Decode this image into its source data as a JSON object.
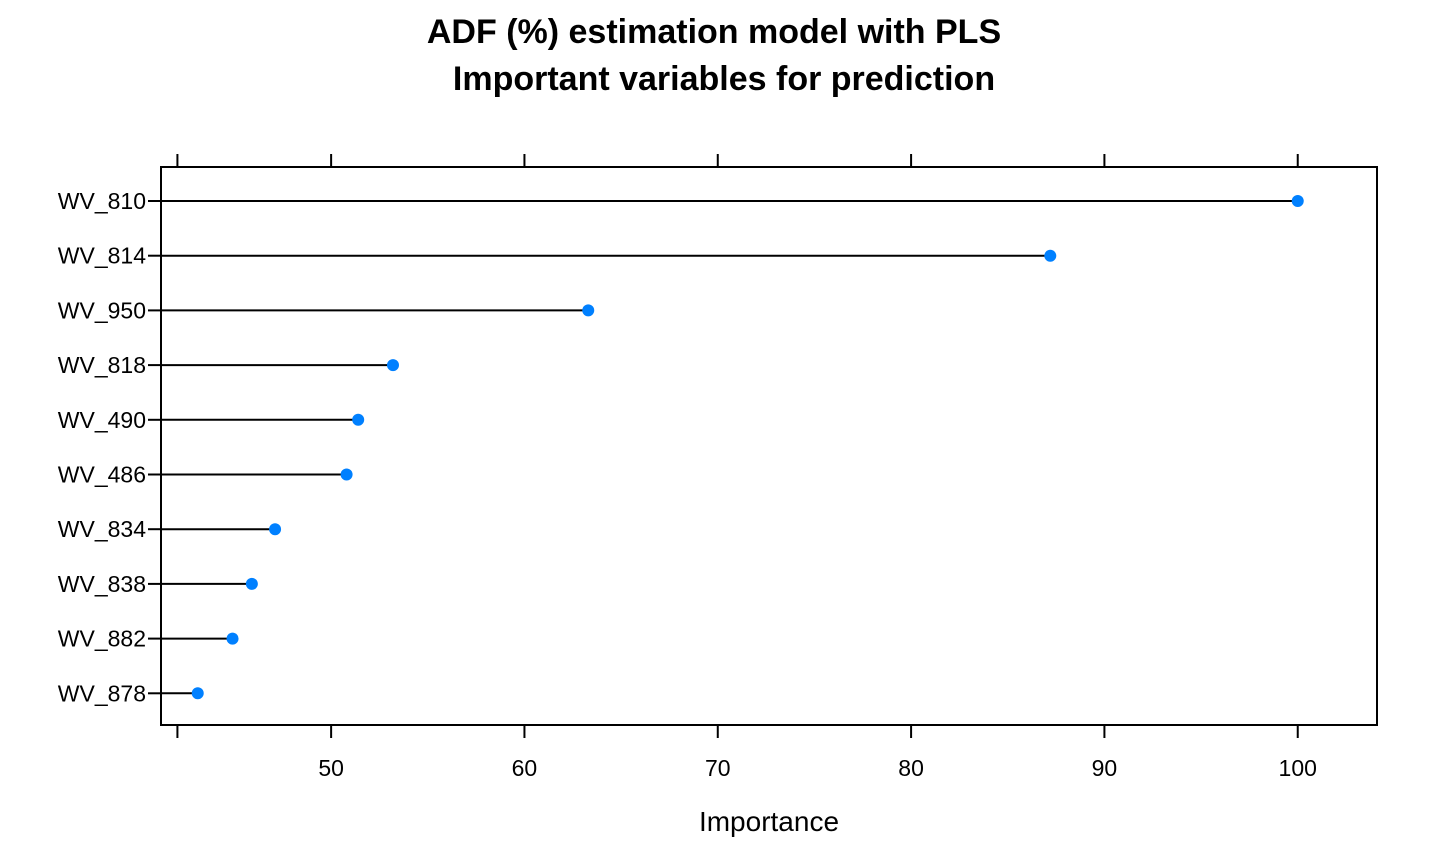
{
  "chart_data": {
    "type": "dot",
    "title_line1": "ADF (%) estimation model with PLS",
    "title_line2": "Important variables for prediction",
    "xlabel": "Importance",
    "ylabel": "",
    "xlim": [
      41.2,
      104.1
    ],
    "xticks": [
      50,
      60,
      70,
      80,
      90,
      100
    ],
    "categories": [
      "WV_810",
      "WV_814",
      "WV_950",
      "WV_818",
      "WV_490",
      "WV_486",
      "WV_834",
      "WV_838",
      "WV_882",
      "WV_878"
    ],
    "values": [
      100,
      87.2,
      63.3,
      53.2,
      51.4,
      50.8,
      47.1,
      45.9,
      44.9,
      43.1
    ],
    "baseline": 41.2,
    "grid": false,
    "point_color": "#0080FF",
    "line_color": "#000000"
  }
}
